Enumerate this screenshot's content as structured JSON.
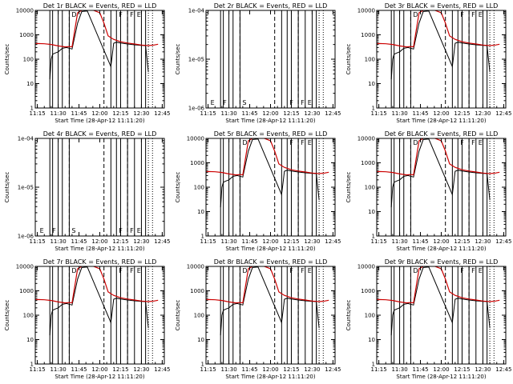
{
  "title_suffix": "BLACK = Events, RED = LLD",
  "xlabel": "Start Time (28-Apr-12 11:11:20)",
  "ylabel": "Counts/sec",
  "x_ticks": [
    "11:15",
    "11:30",
    "11:45",
    "12:00",
    "12:15",
    "12:30",
    "12:45"
  ],
  "colors": {
    "events": "#000000",
    "lld": "#cc0000",
    "axes": "#000000"
  },
  "chart_data": [
    {
      "type": "line",
      "title": "Det 1r BLACK = Events, RED = LLD",
      "scale": "log",
      "ylim": [
        1,
        10000
      ],
      "y_ticks": [
        "1",
        "10",
        "100",
        "1000",
        "10000"
      ],
      "markers": [
        "",
        "",
        "D",
        "",
        "F",
        "F",
        "E"
      ],
      "series": [
        {
          "name": "Events",
          "color": "#000000",
          "x": [
            "11:24",
            "11:25",
            "11:26",
            "11:28",
            "11:30",
            "11:33",
            "11:36",
            "11:40",
            "11:44",
            "11:47",
            "11:51",
            "12:08",
            "12:09",
            "12:10",
            "12:12",
            "12:15",
            "12:20",
            "12:25",
            "12:30",
            "12:33",
            "12:35"
          ],
          "y": [
            15,
            100,
            160,
            180,
            200,
            280,
            300,
            260,
            3000,
            9000,
            9500,
            50,
            150,
            450,
            500,
            460,
            420,
            390,
            370,
            360,
            30
          ]
        },
        {
          "name": "LLD",
          "color": "#cc0000",
          "x": [
            "11:11",
            "11:15",
            "11:20",
            "11:25",
            "11:30",
            "11:35",
            "11:38",
            "11:40",
            "11:44",
            "11:47",
            "11:52",
            "12:00",
            "12:03",
            "12:06",
            "12:10",
            "12:15",
            "12:20",
            "12:25",
            "12:30",
            "12:33",
            "12:35",
            "12:39",
            "12:42"
          ],
          "y": [
            430,
            440,
            430,
            400,
            350,
            320,
            330,
            320,
            8000,
            10000,
            12000,
            8000,
            3000,
            900,
            650,
            520,
            460,
            420,
            380,
            370,
            360,
            380,
            410
          ]
        }
      ]
    },
    {
      "type": "line",
      "title": "Det 2r BLACK = Events, RED = LLD",
      "scale": "log",
      "ylim": [
        1e-06,
        0.0001
      ],
      "y_ticks": [
        "1e-06",
        "1e-05",
        "1e-04"
      ],
      "markers": [
        "E",
        "F",
        "S",
        "",
        "F",
        "F",
        "E"
      ],
      "series": []
    },
    {
      "type": "line",
      "title": "Det 3r BLACK = Events, RED = LLD",
      "scale": "log",
      "ylim": [
        1,
        10000
      ],
      "y_ticks": [
        "1",
        "10",
        "100",
        "1000",
        "10000"
      ],
      "markers": [
        "",
        "",
        "D",
        "",
        "F",
        "F",
        "E"
      ],
      "series": [
        {
          "name": "Events",
          "color": "#000000",
          "x": [
            "11:24",
            "11:25",
            "11:26",
            "11:28",
            "11:30",
            "11:33",
            "11:36",
            "11:40",
            "11:44",
            "11:47",
            "11:51",
            "12:08",
            "12:09",
            "12:10",
            "12:12",
            "12:15",
            "12:20",
            "12:25",
            "12:30",
            "12:33",
            "12:35"
          ],
          "y": [
            15,
            100,
            160,
            180,
            200,
            280,
            300,
            260,
            3000,
            9000,
            9500,
            50,
            150,
            450,
            500,
            460,
            420,
            390,
            370,
            360,
            30
          ]
        },
        {
          "name": "LLD",
          "color": "#cc0000",
          "x": [
            "11:11",
            "11:15",
            "11:20",
            "11:25",
            "11:30",
            "11:35",
            "11:38",
            "11:40",
            "11:44",
            "11:47",
            "11:52",
            "12:00",
            "12:03",
            "12:06",
            "12:10",
            "12:15",
            "12:20",
            "12:25",
            "12:30",
            "12:33",
            "12:35",
            "12:39",
            "12:42"
          ],
          "y": [
            430,
            440,
            430,
            400,
            350,
            320,
            330,
            320,
            8000,
            10000,
            12000,
            8000,
            3000,
            900,
            650,
            520,
            460,
            420,
            380,
            370,
            360,
            380,
            410
          ]
        }
      ]
    },
    {
      "type": "line",
      "title": "Det 4r BLACK = Events, RED = LLD",
      "scale": "log",
      "ylim": [
        1e-06,
        0.0001
      ],
      "y_ticks": [
        "1e-06",
        "1e-05",
        "1e-04"
      ],
      "markers": [
        "E",
        "F",
        "S",
        "",
        "F",
        "F",
        "E"
      ],
      "series": []
    },
    {
      "type": "line",
      "title": "Det 5r BLACK = Events, RED = LLD",
      "scale": "log",
      "ylim": [
        1,
        10000
      ],
      "y_ticks": [
        "1",
        "10",
        "100",
        "1000",
        "10000"
      ],
      "markers": [
        "",
        "",
        "D",
        "",
        "F",
        "F",
        "E"
      ],
      "series": [
        {
          "name": "Events",
          "color": "#000000",
          "x": [
            "11:24",
            "11:25",
            "11:26",
            "11:28",
            "11:30",
            "11:33",
            "11:36",
            "11:40",
            "11:44",
            "11:47",
            "11:51",
            "12:08",
            "12:09",
            "12:10",
            "12:12",
            "12:15",
            "12:20",
            "12:25",
            "12:30",
            "12:33",
            "12:35"
          ],
          "y": [
            15,
            100,
            160,
            180,
            200,
            280,
            300,
            260,
            3000,
            9000,
            9500,
            50,
            150,
            450,
            500,
            460,
            420,
            390,
            370,
            360,
            30
          ]
        },
        {
          "name": "LLD",
          "color": "#cc0000",
          "x": [
            "11:11",
            "11:15",
            "11:20",
            "11:25",
            "11:30",
            "11:35",
            "11:38",
            "11:40",
            "11:44",
            "11:47",
            "11:52",
            "12:00",
            "12:03",
            "12:06",
            "12:10",
            "12:15",
            "12:20",
            "12:25",
            "12:30",
            "12:33",
            "12:35",
            "12:39",
            "12:42"
          ],
          "y": [
            430,
            440,
            430,
            400,
            350,
            320,
            330,
            320,
            8000,
            10000,
            12000,
            8000,
            3000,
            900,
            650,
            520,
            460,
            420,
            380,
            370,
            360,
            380,
            410
          ]
        }
      ]
    },
    {
      "type": "line",
      "title": "Det 6r BLACK = Events, RED = LLD",
      "scale": "log",
      "ylim": [
        1,
        10000
      ],
      "y_ticks": [
        "1",
        "10",
        "100",
        "1000",
        "10000"
      ],
      "markers": [
        "",
        "",
        "D",
        "",
        "F",
        "F",
        "E"
      ],
      "series": [
        {
          "name": "Events",
          "color": "#000000",
          "x": [
            "11:24",
            "11:25",
            "11:26",
            "11:28",
            "11:30",
            "11:33",
            "11:36",
            "11:40",
            "11:44",
            "11:47",
            "11:51",
            "12:08",
            "12:09",
            "12:10",
            "12:12",
            "12:15",
            "12:20",
            "12:25",
            "12:30",
            "12:33",
            "12:35"
          ],
          "y": [
            15,
            100,
            160,
            180,
            200,
            280,
            300,
            260,
            3000,
            9000,
            9500,
            50,
            150,
            450,
            500,
            460,
            420,
            390,
            370,
            360,
            30
          ]
        },
        {
          "name": "LLD",
          "color": "#cc0000",
          "x": [
            "11:11",
            "11:15",
            "11:20",
            "11:25",
            "11:30",
            "11:35",
            "11:38",
            "11:40",
            "11:44",
            "11:47",
            "11:52",
            "12:00",
            "12:03",
            "12:06",
            "12:10",
            "12:15",
            "12:20",
            "12:25",
            "12:30",
            "12:33",
            "12:35",
            "12:39",
            "12:42"
          ],
          "y": [
            430,
            440,
            430,
            400,
            350,
            320,
            330,
            320,
            8000,
            10000,
            12000,
            8000,
            3000,
            900,
            650,
            520,
            460,
            420,
            380,
            370,
            360,
            380,
            410
          ]
        }
      ]
    },
    {
      "type": "line",
      "title": "Det 7r BLACK = Events, RED = LLD",
      "scale": "log",
      "ylim": [
        1,
        10000
      ],
      "y_ticks": [
        "1",
        "10",
        "100",
        "1000",
        "10000"
      ],
      "markers": [
        "",
        "",
        "D",
        "",
        "F",
        "F",
        "E"
      ],
      "series": [
        {
          "name": "Events",
          "color": "#000000",
          "x": [
            "11:24",
            "11:25",
            "11:26",
            "11:28",
            "11:30",
            "11:33",
            "11:36",
            "11:40",
            "11:44",
            "11:47",
            "11:51",
            "12:08",
            "12:09",
            "12:10",
            "12:12",
            "12:15",
            "12:20",
            "12:25",
            "12:30",
            "12:33",
            "12:35"
          ],
          "y": [
            15,
            100,
            160,
            180,
            200,
            280,
            300,
            260,
            3000,
            9000,
            9500,
            50,
            150,
            450,
            500,
            460,
            420,
            390,
            370,
            360,
            30
          ]
        },
        {
          "name": "LLD",
          "color": "#cc0000",
          "x": [
            "11:11",
            "11:15",
            "11:20",
            "11:25",
            "11:30",
            "11:35",
            "11:38",
            "11:40",
            "11:44",
            "11:47",
            "11:52",
            "12:00",
            "12:03",
            "12:06",
            "12:10",
            "12:15",
            "12:20",
            "12:25",
            "12:30",
            "12:33",
            "12:35",
            "12:39",
            "12:42"
          ],
          "y": [
            430,
            440,
            430,
            400,
            350,
            320,
            330,
            320,
            8000,
            10000,
            12000,
            8000,
            3000,
            900,
            650,
            520,
            460,
            420,
            380,
            370,
            360,
            380,
            410
          ]
        }
      ]
    },
    {
      "type": "line",
      "title": "Det 8r BLACK = Events, RED = LLD",
      "scale": "log",
      "ylim": [
        1,
        10000
      ],
      "y_ticks": [
        "1",
        "10",
        "100",
        "1000",
        "10000"
      ],
      "markers": [
        "",
        "",
        "D",
        "",
        "F",
        "F",
        "E"
      ],
      "series": [
        {
          "name": "Events",
          "color": "#000000",
          "x": [
            "11:24",
            "11:25",
            "11:26",
            "11:28",
            "11:30",
            "11:33",
            "11:36",
            "11:40",
            "11:44",
            "11:47",
            "11:51",
            "12:08",
            "12:09",
            "12:10",
            "12:12",
            "12:15",
            "12:20",
            "12:25",
            "12:30",
            "12:33",
            "12:35"
          ],
          "y": [
            15,
            100,
            160,
            180,
            200,
            280,
            300,
            260,
            3000,
            9000,
            9500,
            50,
            150,
            450,
            500,
            460,
            420,
            390,
            370,
            360,
            30
          ]
        },
        {
          "name": "LLD",
          "color": "#cc0000",
          "x": [
            "11:11",
            "11:15",
            "11:20",
            "11:25",
            "11:30",
            "11:35",
            "11:38",
            "11:40",
            "11:44",
            "11:47",
            "11:52",
            "12:00",
            "12:03",
            "12:06",
            "12:10",
            "12:15",
            "12:20",
            "12:25",
            "12:30",
            "12:33",
            "12:35",
            "12:39",
            "12:42"
          ],
          "y": [
            430,
            440,
            430,
            400,
            350,
            320,
            330,
            320,
            8000,
            10000,
            12000,
            8000,
            3000,
            900,
            650,
            520,
            460,
            420,
            380,
            370,
            360,
            380,
            410
          ]
        }
      ]
    },
    {
      "type": "line",
      "title": "Det 9r BLACK = Events, RED = LLD",
      "scale": "log",
      "ylim": [
        1,
        10000
      ],
      "y_ticks": [
        "1",
        "10",
        "100",
        "1000",
        "10000"
      ],
      "markers": [
        "",
        "",
        "D",
        "",
        "F",
        "F",
        "E"
      ],
      "series": [
        {
          "name": "Events",
          "color": "#000000",
          "x": [
            "11:24",
            "11:25",
            "11:26",
            "11:28",
            "11:30",
            "11:33",
            "11:36",
            "11:40",
            "11:44",
            "11:47",
            "11:51",
            "12:08",
            "12:09",
            "12:10",
            "12:12",
            "12:15",
            "12:20",
            "12:25",
            "12:30",
            "12:33",
            "12:35"
          ],
          "y": [
            15,
            100,
            160,
            180,
            200,
            280,
            300,
            260,
            3000,
            9000,
            9500,
            50,
            150,
            450,
            500,
            460,
            420,
            390,
            370,
            360,
            30
          ]
        },
        {
          "name": "LLD",
          "color": "#cc0000",
          "x": [
            "11:11",
            "11:15",
            "11:20",
            "11:25",
            "11:30",
            "11:35",
            "11:38",
            "11:40",
            "11:44",
            "11:47",
            "11:52",
            "12:00",
            "12:03",
            "12:06",
            "12:10",
            "12:15",
            "12:20",
            "12:25",
            "12:30",
            "12:33",
            "12:35",
            "12:39",
            "12:42"
          ],
          "y": [
            430,
            440,
            430,
            400,
            350,
            320,
            330,
            320,
            8000,
            10000,
            12000,
            8000,
            3000,
            900,
            650,
            520,
            460,
            420,
            380,
            370,
            360,
            380,
            410
          ]
        }
      ]
    }
  ],
  "time_lines": {
    "solid": [
      "11:24",
      "11:26",
      "11:30",
      "11:33",
      "11:38",
      "12:08",
      "12:12",
      "12:15",
      "12:20",
      "12:25",
      "12:30",
      "12:33"
    ],
    "dashed": [
      "11:38",
      "12:03",
      "12:20"
    ],
    "dotted": [
      "12:35",
      "12:38"
    ]
  }
}
